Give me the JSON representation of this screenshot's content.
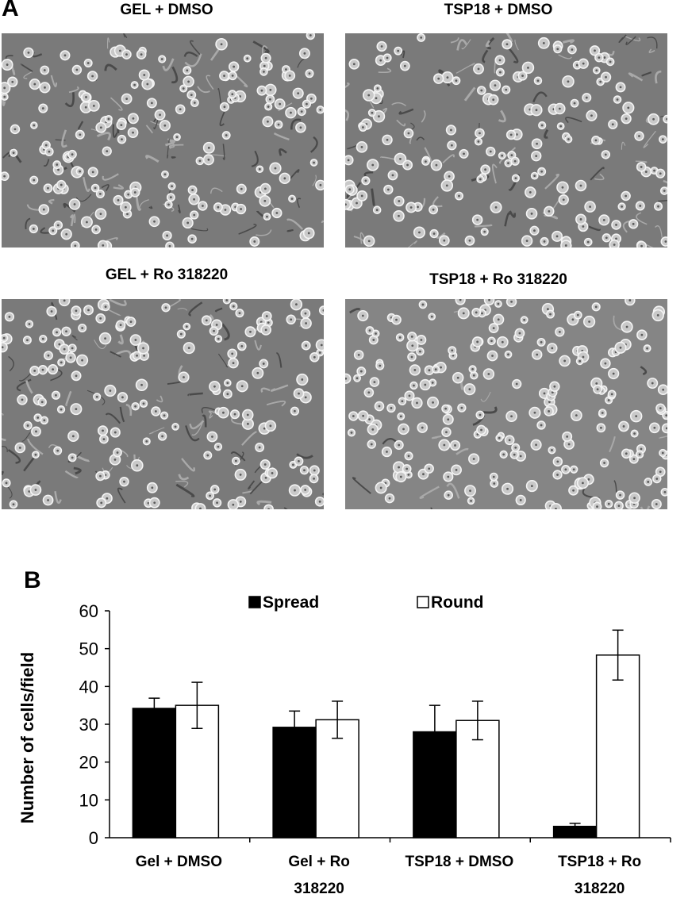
{
  "panel_a": {
    "letter": "A",
    "images": [
      {
        "label": "GEL + DMSO"
      },
      {
        "label": "TSP18 + DMSO"
      },
      {
        "label": "GEL + Ro 318220"
      },
      {
        "label": "TSP18 + Ro 318220"
      }
    ]
  },
  "panel_b": {
    "letter": "B"
  },
  "chart_data": {
    "type": "bar",
    "categories": [
      [
        "Gel + DMSO"
      ],
      [
        "Gel + Ro",
        "318220"
      ],
      [
        "TSP18 + DMSO"
      ],
      [
        "TSP18 + Ro",
        "318220"
      ]
    ],
    "series": [
      {
        "name": "Spread",
        "color": "#000000",
        "values": [
          34.2,
          29.2,
          28.0,
          3.0
        ],
        "errors": [
          2.7,
          4.3,
          7.0,
          0.8
        ]
      },
      {
        "name": "Round",
        "color": "#ffffff",
        "values": [
          35.0,
          31.2,
          31.0,
          48.3
        ],
        "errors": [
          6.1,
          4.9,
          5.1,
          6.6
        ]
      }
    ],
    "ylabel": "Number of cells/field",
    "ylim": [
      0,
      60
    ],
    "yticks": [
      0,
      10,
      20,
      30,
      40,
      50,
      60
    ],
    "legend_position": "top",
    "grid": false
  }
}
